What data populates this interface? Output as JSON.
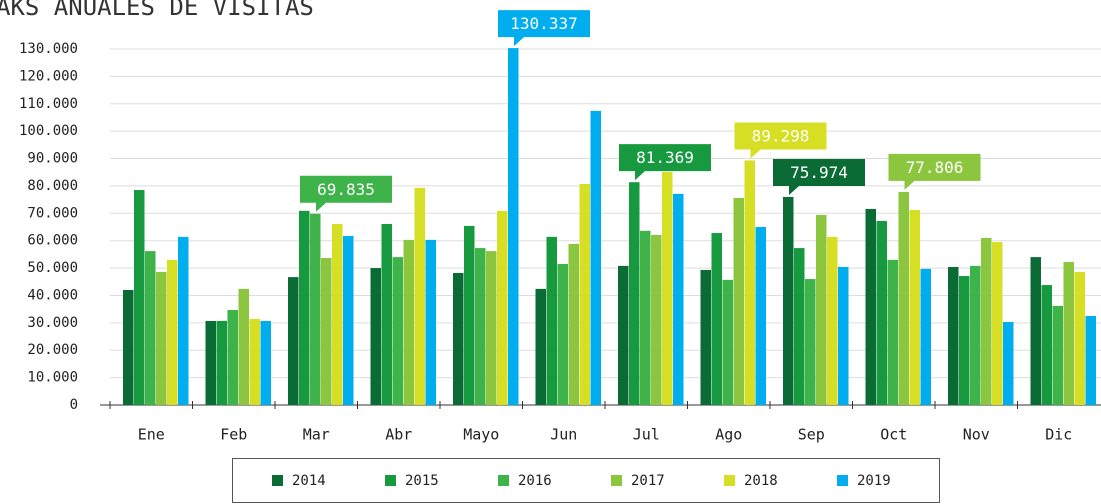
{
  "chart_data": {
    "type": "bar",
    "title": "AKS ANUALES DE VISITAS",
    "categories": [
      "Ene",
      "Feb",
      "Mar",
      "Abr",
      "Mayo",
      "Jun",
      "Jul",
      "Ago",
      "Sep",
      "Oct",
      "Nov",
      "Dic"
    ],
    "series": [
      {
        "name": "2014",
        "color": "#0b6b35",
        "values": [
          42000,
          30700,
          46700,
          50000,
          48200,
          42400,
          50800,
          49300,
          75974,
          71600,
          50400,
          54000
        ],
        "value_labels": [
          null,
          null,
          null,
          null,
          null,
          null,
          null,
          null,
          "75.974",
          null,
          null,
          null
        ]
      },
      {
        "name": "2015",
        "color": "#179a3f",
        "values": [
          78500,
          30700,
          70900,
          66100,
          65400,
          61400,
          81369,
          62800,
          57300,
          67200,
          47100,
          43800
        ],
        "value_labels": [
          null,
          null,
          null,
          null,
          null,
          null,
          "81.369",
          null,
          null,
          null,
          null,
          null
        ]
      },
      {
        "name": "2016",
        "color": "#3db34a",
        "values": [
          56200,
          34700,
          69835,
          54000,
          57300,
          51500,
          63600,
          45700,
          46000,
          53000,
          50800,
          36200
        ],
        "value_labels": [
          null,
          null,
          "69.835",
          null,
          null,
          null,
          null,
          null,
          null,
          null,
          null,
          null
        ]
      },
      {
        "name": "2017",
        "color": "#8cc63f",
        "values": [
          48600,
          42400,
          53700,
          60300,
          56200,
          58800,
          62100,
          75600,
          69400,
          77806,
          61000,
          52200
        ],
        "value_labels": [
          null,
          null,
          null,
          null,
          null,
          null,
          null,
          null,
          null,
          "77.806",
          null,
          null
        ]
      },
      {
        "name": "2018",
        "color": "#d6df23",
        "values": [
          53000,
          31400,
          66100,
          79300,
          70900,
          80700,
          85100,
          89298,
          61400,
          71200,
          59500,
          48600
        ],
        "value_labels": [
          null,
          null,
          null,
          null,
          null,
          null,
          null,
          "89.298",
          null,
          null,
          null,
          null
        ]
      },
      {
        "name": "2019",
        "color": "#00aeef",
        "values": [
          61400,
          30700,
          61700,
          60300,
          130337,
          107400,
          77100,
          65000,
          50400,
          49700,
          30300,
          32500
        ],
        "value_labels": [
          null,
          null,
          null,
          null,
          "130.337",
          null,
          null,
          null,
          null,
          null,
          null,
          null
        ]
      }
    ],
    "ylim": [
      0,
      130000
    ],
    "yticks": [
      0,
      {
        "value": 10000,
        "label": "10.000"
      },
      {
        "value": 20000,
        "label": "20.000"
      },
      {
        "value": 30000,
        "label": "30.000"
      },
      {
        "value": 40000,
        "label": "40.000"
      },
      {
        "value": 50000,
        "label": "50.000"
      },
      {
        "value": 60000,
        "label": "60.000"
      },
      {
        "value": 70000,
        "label": "70.000"
      },
      {
        "value": 80000,
        "label": "80.000"
      },
      {
        "value": 90000,
        "label": "90.000"
      },
      {
        "value": 100000,
        "label": "100.000"
      },
      {
        "value": 110000,
        "label": "110.000"
      },
      {
        "value": 120000,
        "label": "120.000"
      },
      {
        "value": 130000,
        "label": "130.000"
      }
    ],
    "grid": true,
    "legend": "bottom"
  }
}
